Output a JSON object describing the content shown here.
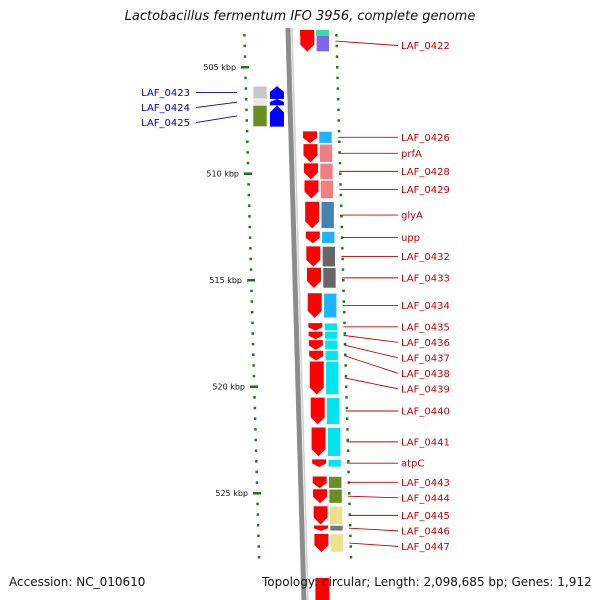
{
  "title": "Lactobacillus fermentum IFO 3956, complete genome",
  "footer": {
    "accession": "Accession: NC_010610",
    "summary": "Topology: circular; Length: 2,098,685 bp; Genes: 1,912"
  },
  "colors": {
    "backbone": "#8c8c8c",
    "forward_gene": "#ff0000",
    "reverse_gene": "#0000ff",
    "tick": "#1a7a1a",
    "label_plus": "#cc0000",
    "label_minus": "#0000cc"
  },
  "axis": {
    "start_kbp": 503,
    "end_kbp": 528,
    "major_ticks": [
      "505 kbp",
      "510 kbp",
      "515 kbp",
      "520 kbp",
      "525 kbp"
    ]
  },
  "genes": [
    {
      "label": "LAF_0422",
      "strand": "+",
      "start": 503.0,
      "end": 504.3,
      "cog": "#7b68ee"
    },
    {
      "label": "LAF_0423",
      "strand": "-",
      "start": 505.9,
      "end": 506.5,
      "cog": "#c8c8c8"
    },
    {
      "label": "LAF_0424",
      "strand": "-",
      "start": 506.5,
      "end": 506.8,
      "cog": "#e8e8e8"
    },
    {
      "label": "LAF_0425",
      "strand": "-",
      "start": 506.8,
      "end": 507.8,
      "cog": "#6b8e23"
    },
    {
      "label": "LAF_0426",
      "strand": "+",
      "start": 508.0,
      "end": 508.6,
      "cog": "#1eb4ff"
    },
    {
      "label": "prfA",
      "strand": "+",
      "start": 508.6,
      "end": 509.5,
      "cog": "#f08080"
    },
    {
      "label": "LAF_0428",
      "strand": "+",
      "start": 509.5,
      "end": 510.3,
      "cog": "#f08080"
    },
    {
      "label": "LAF_0429",
      "strand": "+",
      "start": 510.3,
      "end": 511.2,
      "cog": "#f08080"
    },
    {
      "label": "glyA",
      "strand": "+",
      "start": 511.3,
      "end": 512.6,
      "cog": "#4682b4"
    },
    {
      "label": "upp",
      "strand": "+",
      "start": 512.7,
      "end": 513.3,
      "cog": "#1eb4ff"
    },
    {
      "label": "LAF_0432",
      "strand": "+",
      "start": 513.4,
      "end": 514.4,
      "cog": "#666666"
    },
    {
      "label": "LAF_0433",
      "strand": "+",
      "start": 514.4,
      "end": 515.4,
      "cog": "#666666"
    },
    {
      "label": "LAF_0434",
      "strand": "+",
      "start": 515.6,
      "end": 516.8,
      "cog": "#1eb4ff"
    },
    {
      "label": "LAF_0435",
      "strand": "+",
      "start": 517.0,
      "end": 517.4,
      "cog": "#00e5ee"
    },
    {
      "label": "LAF_0436",
      "strand": "+",
      "start": 517.4,
      "end": 517.8,
      "cog": "#00e5ee"
    },
    {
      "label": "LAF_0437",
      "strand": "+",
      "start": 517.8,
      "end": 518.3,
      "cog": "#00e5ee"
    },
    {
      "label": "LAF_0438",
      "strand": "+",
      "start": 518.3,
      "end": 518.8,
      "cog": "#00e5ee"
    },
    {
      "label": "LAF_0439",
      "strand": "+",
      "start": 518.8,
      "end": 520.4,
      "cog": "#00e5ee"
    },
    {
      "label": "LAF_0440",
      "strand": "+",
      "start": 520.5,
      "end": 521.8,
      "cog": "#00e5ee"
    },
    {
      "label": "LAF_0441",
      "strand": "+",
      "start": 521.9,
      "end": 523.3,
      "cog": "#00e5ee"
    },
    {
      "label": "atpC",
      "strand": "+",
      "start": 523.4,
      "end": 523.8,
      "cog": "#00e5ee"
    },
    {
      "label": "LAF_0443",
      "strand": "+",
      "start": 524.2,
      "end": 524.8,
      "cog": "#6b8e23"
    },
    {
      "label": "LAF_0444",
      "strand": "+",
      "start": 524.8,
      "end": 525.5,
      "cog": "#6b8e23"
    },
    {
      "label": "LAF_0445",
      "strand": "+",
      "start": 525.6,
      "end": 526.5,
      "cog": "#eee08c"
    },
    {
      "label": "LAF_0446",
      "strand": "+",
      "start": 526.5,
      "end": 526.8,
      "cog": "#777777"
    },
    {
      "label": "LAF_0447",
      "strand": "+",
      "start": 526.9,
      "end": 527.8,
      "cog": "#eee08c"
    }
  ]
}
